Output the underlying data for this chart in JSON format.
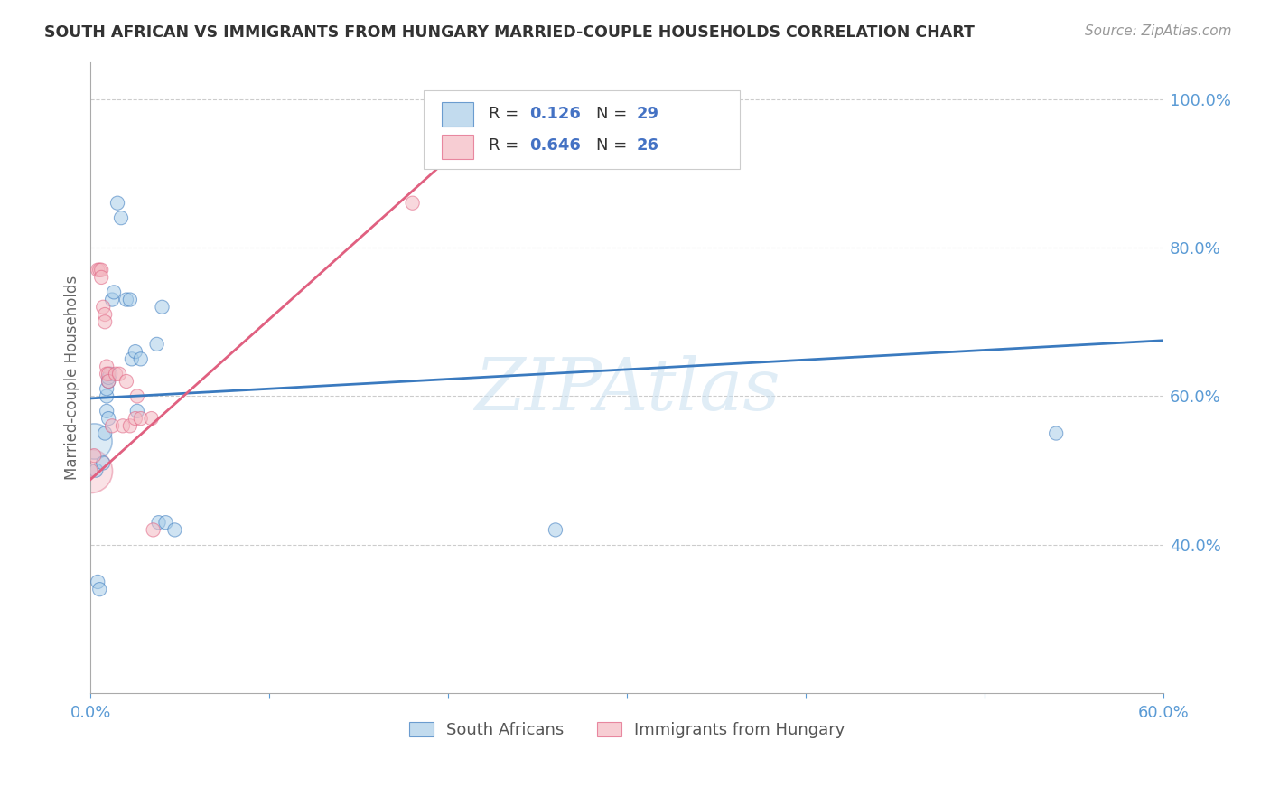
{
  "title": "SOUTH AFRICAN VS IMMIGRANTS FROM HUNGARY MARRIED-COUPLE HOUSEHOLDS CORRELATION CHART",
  "source": "Source: ZipAtlas.com",
  "ylabel": "Married-couple Households",
  "watermark": "ZIPAtlas",
  "x_min": 0.0,
  "x_max": 0.6,
  "y_min": 0.2,
  "y_max": 1.05,
  "x_ticks": [
    0.0,
    0.1,
    0.2,
    0.3,
    0.4,
    0.5,
    0.6
  ],
  "x_tick_labels": [
    "0.0%",
    "",
    "",
    "",
    "",
    "",
    "60.0%"
  ],
  "y_ticks": [
    0.4,
    0.6,
    0.8,
    1.0
  ],
  "y_tick_labels": [
    "40.0%",
    "60.0%",
    "80.0%",
    "100.0%"
  ],
  "blue_R": "0.126",
  "blue_N": "29",
  "pink_R": "0.646",
  "pink_N": "26",
  "blue_color": "#a8cde8",
  "pink_color": "#f4b8c1",
  "blue_line_color": "#3a7abf",
  "pink_line_color": "#e06080",
  "legend_label_blue": "South Africans",
  "legend_label_pink": "Immigrants from Hungary",
  "blue_scatter_x": [
    0.003,
    0.004,
    0.005,
    0.007,
    0.008,
    0.009,
    0.009,
    0.009,
    0.01,
    0.01,
    0.01,
    0.011,
    0.012,
    0.013,
    0.015,
    0.017,
    0.02,
    0.022,
    0.023,
    0.025,
    0.026,
    0.028,
    0.037,
    0.038,
    0.04,
    0.042,
    0.047,
    0.26,
    0.54
  ],
  "blue_scatter_y": [
    0.5,
    0.35,
    0.34,
    0.51,
    0.55,
    0.58,
    0.6,
    0.61,
    0.57,
    0.62,
    0.625,
    0.63,
    0.73,
    0.74,
    0.86,
    0.84,
    0.73,
    0.73,
    0.65,
    0.66,
    0.58,
    0.65,
    0.67,
    0.43,
    0.72,
    0.43,
    0.42,
    0.42,
    0.55
  ],
  "blue_scatter_sizes": [
    120,
    120,
    120,
    120,
    120,
    120,
    120,
    120,
    120,
    120,
    120,
    120,
    120,
    120,
    120,
    120,
    120,
    120,
    120,
    120,
    120,
    120,
    120,
    120,
    120,
    120,
    120,
    120,
    120
  ],
  "pink_scatter_x": [
    0.0,
    0.002,
    0.004,
    0.005,
    0.006,
    0.006,
    0.007,
    0.008,
    0.008,
    0.009,
    0.009,
    0.01,
    0.01,
    0.012,
    0.014,
    0.016,
    0.018,
    0.02,
    0.022,
    0.025,
    0.026,
    0.028,
    0.034,
    0.035,
    0.18,
    0.22
  ],
  "pink_scatter_y": [
    0.5,
    0.52,
    0.77,
    0.77,
    0.77,
    0.76,
    0.72,
    0.71,
    0.7,
    0.64,
    0.63,
    0.63,
    0.62,
    0.56,
    0.63,
    0.63,
    0.56,
    0.62,
    0.56,
    0.57,
    0.6,
    0.57,
    0.57,
    0.42,
    0.86,
    0.98
  ],
  "pink_scatter_sizes": [
    120,
    120,
    120,
    120,
    120,
    120,
    120,
    120,
    120,
    120,
    120,
    120,
    120,
    120,
    120,
    120,
    120,
    120,
    120,
    120,
    120,
    120,
    120,
    120,
    120,
    120
  ],
  "blue_line_x": [
    0.0,
    0.6
  ],
  "blue_line_y": [
    0.597,
    0.675
  ],
  "pink_line_x": [
    0.0,
    0.235
  ],
  "pink_line_y": [
    0.488,
    0.995
  ],
  "grid_color": "#cccccc",
  "bg_color": "#ffffff",
  "title_color": "#333333",
  "axis_tick_color": "#5b9bd5",
  "watermark_color": "#c8dff0",
  "watermark_alpha": 0.55,
  "legend_R_eq_color": "#333333",
  "legend_RN_color": "#4472c4"
}
